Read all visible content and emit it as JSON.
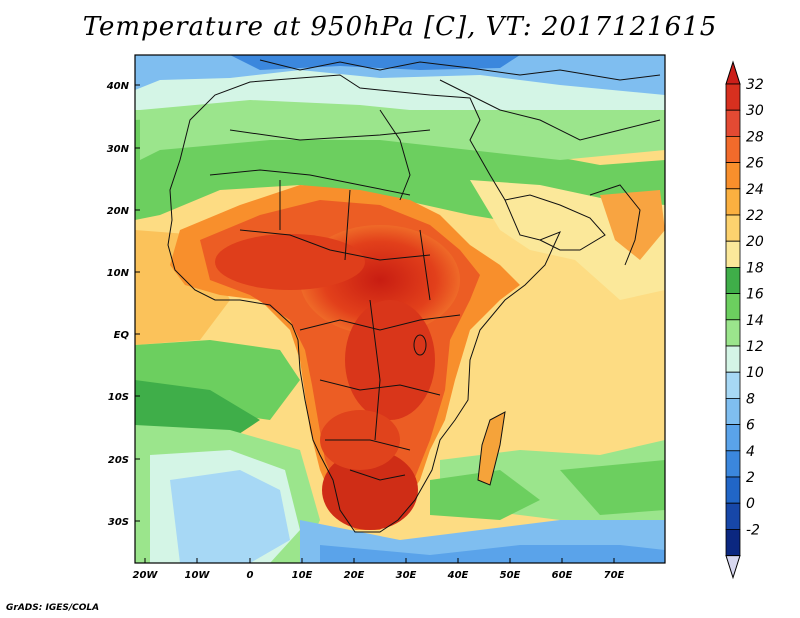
{
  "title": "Temperature at 950hPa [C], VT: 2017121615",
  "footer": "GrADS: IGES/COLA",
  "map": {
    "lat_labels": [
      "40N",
      "30N",
      "20N",
      "10N",
      "EQ",
      "10S",
      "20S",
      "30S"
    ],
    "lon_labels": [
      "20W",
      "10W",
      "0",
      "10E",
      "20E",
      "30E",
      "40E",
      "50E",
      "60E",
      "70E"
    ]
  },
  "colorbar": {
    "levels": [
      "32",
      "30",
      "28",
      "26",
      "24",
      "22",
      "20",
      "18",
      "16",
      "14",
      "12",
      "10",
      "8",
      "6",
      "4",
      "2",
      "0",
      "-2"
    ],
    "colors": [
      "#d7301f",
      "#e34a33",
      "#f26b2b",
      "#f88f2c",
      "#fbb040",
      "#fdd26e",
      "#fbe89a",
      "#3fae49",
      "#6ccf5f",
      "#9be58c",
      "#d4f5e6",
      "#a7d8f5",
      "#7fbef0",
      "#5aa3ea",
      "#3b87dd",
      "#2166c7",
      "#1747a8",
      "#0b2780"
    ],
    "top_color": "#cc1f1a",
    "bottom_color": "#d8d8f0"
  }
}
